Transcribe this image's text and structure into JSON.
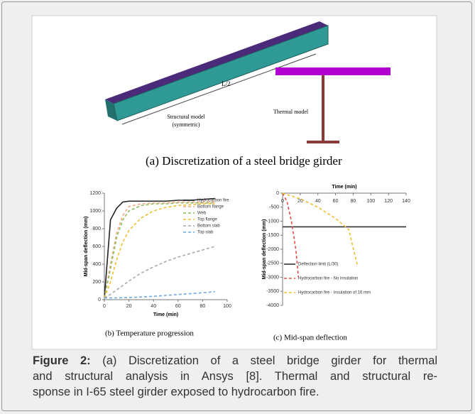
{
  "figure": {
    "panel_a": {
      "length_label": "L/2",
      "structural_label": "Structural model",
      "structural_sub": "(symmetric)",
      "thermal_label": "Thermal model",
      "caption": "(a)  Discretization of a steel bridge girder"
    },
    "charts": [
      {
        "type": "line",
        "xlabel": "Time (min)",
        "ylabel": "Mid-span deflection (mm)",
        "caption": "(b) Temperature progression",
        "x": [
          0,
          5,
          10,
          15,
          20,
          30,
          40,
          50,
          60,
          70,
          80,
          90
        ],
        "xlim": [
          0,
          100
        ],
        "xticks": [
          0,
          20,
          40,
          60,
          80,
          100
        ],
        "ylim": [
          0,
          1200
        ],
        "yticks": [
          0,
          200,
          400,
          600,
          800,
          1000,
          1200
        ],
        "legend": "top-right",
        "series": [
          {
            "name": "Hydrocarbon fire",
            "color": "#222222",
            "dash": false,
            "values": [
              20,
              900,
              1030,
              1100,
              1110,
              1110,
              1110,
              1110,
              1120,
              1120,
              1130,
              1140
            ]
          },
          {
            "name": "Bottom flange",
            "color": "#f4a582",
            "dash": true,
            "values": [
              20,
              400,
              750,
              950,
              1050,
              1080,
              1090,
              1090,
              1100,
              1100,
              1100,
              1100
            ]
          },
          {
            "name": "Web",
            "color": "#8fbc5a",
            "dash": true,
            "values": [
              20,
              350,
              700,
              900,
              1000,
              1060,
              1080,
              1080,
              1090,
              1090,
              1090,
              1090
            ]
          },
          {
            "name": "Top flange",
            "color": "#f0c030",
            "dash": true,
            "values": [
              20,
              200,
              450,
              650,
              780,
              920,
              1000,
              1040,
              1060,
              1070,
              1080,
              1080
            ]
          },
          {
            "name": "Bottom slab",
            "color": "#aaaaaa",
            "dash": true,
            "values": [
              20,
              60,
              110,
              160,
              210,
              300,
              370,
              430,
              480,
              520,
              560,
              600
            ]
          },
          {
            "name": "Top slab",
            "color": "#6fa8dc",
            "dash": true,
            "values": [
              20,
              20,
              20,
              22,
              24,
              30,
              38,
              48,
              58,
              68,
              78,
              90
            ]
          }
        ]
      },
      {
        "type": "line",
        "xlabel": "Time (min)",
        "ylabel": "Mid-span deflection (mm)",
        "caption": "(c) Mid-span deflection",
        "xlim": [
          0,
          140
        ],
        "xticks": [
          0,
          20,
          40,
          60,
          80,
          100,
          120,
          140
        ],
        "ylim": [
          -4000,
          0
        ],
        "yticks": [
          0,
          -500,
          -1000,
          -1500,
          -2000,
          -2500,
          -3000,
          -3500,
          -4000
        ],
        "legend": "bottom",
        "series": [
          {
            "name": "Deflection limit (L/30)",
            "color": "#333333",
            "dash": false,
            "x": [
              0,
              140
            ],
            "values": [
              -1200,
              -1200
            ]
          },
          {
            "name": "Hydrocarbon fire - No insulation",
            "color": "#e84a4a",
            "dash": true,
            "x": [
              0,
              5,
              10,
              15,
              18
            ],
            "values": [
              0,
              -300,
              -1000,
              -2000,
              -3000
            ]
          },
          {
            "name": "Hydrocarbon fire - Insulation of 16 mm",
            "color": "#f0c030",
            "dash": true,
            "x": [
              0,
              20,
              40,
              60,
              75,
              85
            ],
            "values": [
              0,
              -200,
              -500,
              -900,
              -1300,
              -2600
            ]
          }
        ]
      }
    ]
  },
  "caption": {
    "label": "Figure 2:",
    "lines": [
      "(a) Discretization of a steel bridge girder for thermal",
      "and structural analysis in Ansys [8]. Thermal and structural re-",
      "sponse in I-65 steel girder exposed to hydrocarbon fire."
    ]
  }
}
